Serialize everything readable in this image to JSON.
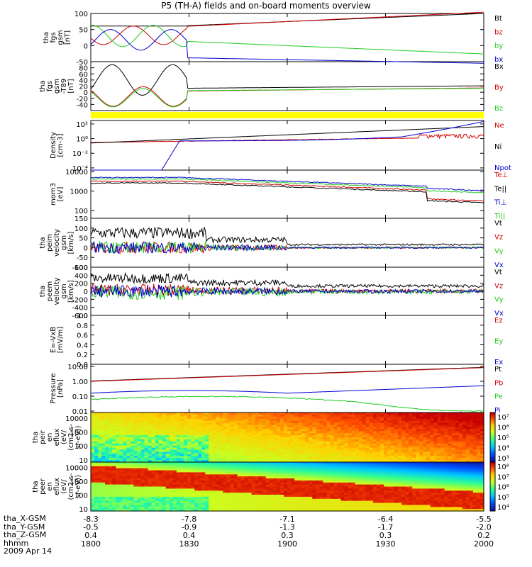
{
  "title": "P5 (TH-A) fields and on-board moments overview",
  "date_label": "2009 Apr 14",
  "colors": {
    "black": "#000000",
    "red": "#d40000",
    "green": "#1fcc1f",
    "blue": "#0000d0",
    "yellow": "#ffff00"
  },
  "chart_data": [
    {
      "id": "fgs_gsm",
      "type": "line",
      "ylabel": [
        "tha",
        "fgs",
        "gsm",
        "[nT]"
      ],
      "ylim": [
        -50,
        100
      ],
      "yticks": [
        100,
        50,
        0,
        -50
      ],
      "yticklabels": [
        "100",
        "50",
        "0",
        "-50"
      ],
      "series": [
        {
          "name": "Bt",
          "color": "black"
        },
        {
          "name": "bz",
          "color": "red"
        },
        {
          "name": "by",
          "color": "green"
        },
        {
          "name": "bx",
          "color": "blue"
        }
      ]
    },
    {
      "id": "fgs_gsm_t89",
      "type": "line",
      "ylabel": [
        "tha",
        "fgs",
        "gsm",
        "-T89",
        "[nT]"
      ],
      "ylim": [
        -60,
        100
      ],
      "yticks": [
        80,
        60,
        40,
        20,
        0,
        -20,
        -40
      ],
      "yticklabels": [
        "80",
        "60",
        "40",
        "20",
        "0",
        "-20",
        "-40"
      ],
      "series": [
        {
          "name": "Bx",
          "color": "black"
        },
        {
          "name": "By",
          "color": "red"
        },
        {
          "name": "Bz",
          "color": "green"
        }
      ]
    },
    {
      "id": "density",
      "type": "line",
      "ylabel": [
        "Density",
        "[cm-3]"
      ],
      "scale": "log",
      "ylim": [
        5e-05,
        300
      ],
      "yticks": [
        100,
        1,
        0.01,
        0.0001
      ],
      "yticklabels": [
        "10²",
        "10⁰",
        "10⁻²",
        "10⁻⁴"
      ],
      "series": [
        {
          "name": "Ne",
          "color": "red"
        },
        {
          "name": "Ni",
          "color": "black"
        },
        {
          "name": "Npot",
          "color": "blue"
        }
      ]
    },
    {
      "id": "temperature",
      "type": "line",
      "ylabel": [
        "mom3",
        "[eV]"
      ],
      "scale": "log",
      "ylim": [
        40,
        12000
      ],
      "yticks": [
        10000,
        1000,
        100
      ],
      "yticklabels": [
        "10000",
        "1000",
        "100"
      ],
      "series": [
        {
          "name": "Te⊥",
          "color": "red"
        },
        {
          "name": "Te||",
          "color": "black"
        },
        {
          "name": "Ti⊥",
          "color": "blue"
        },
        {
          "name": "Ti||",
          "color": "green"
        }
      ]
    },
    {
      "id": "peim_velocity",
      "type": "line",
      "ylabel": [
        "tha",
        "peim",
        "velocity",
        "gsm",
        "[km/s]"
      ],
      "ylim": [
        -100,
        150
      ],
      "yticks": [
        150,
        100,
        50,
        0,
        -50,
        -100
      ],
      "yticklabels": [
        "150",
        "100",
        "50",
        "0",
        "-50",
        "-100"
      ],
      "series": [
        {
          "name": "Vt",
          "color": "black"
        },
        {
          "name": "Vz",
          "color": "red"
        },
        {
          "name": "Vy",
          "color": "green"
        },
        {
          "name": "Vx",
          "color": "blue"
        }
      ]
    },
    {
      "id": "peem_velocity",
      "type": "line",
      "ylabel": [
        "tha",
        "peem",
        "velocity",
        "gsm",
        "[km/s]"
      ],
      "ylim": [
        -600,
        600
      ],
      "yticks": [
        600,
        400,
        200,
        0,
        -200,
        -400,
        -600
      ],
      "yticklabels": [
        "600",
        "400",
        "200",
        "0",
        "-200",
        "-400",
        "-600"
      ],
      "series": [
        {
          "name": "Vt",
          "color": "black"
        },
        {
          "name": "Vz",
          "color": "red"
        },
        {
          "name": "Vy",
          "color": "green"
        },
        {
          "name": "Vx",
          "color": "blue"
        }
      ]
    },
    {
      "id": "efield",
      "type": "line",
      "ylabel": [
        "E=-VxB",
        "[mV/m]"
      ],
      "ylim": [
        0,
        1
      ],
      "yticks": [
        1,
        0.8,
        0.6,
        0.4,
        0.2,
        0
      ],
      "yticklabels": [
        "1.0",
        "0.8",
        "0.6",
        "0.4",
        "0.2",
        "0.0"
      ],
      "series": [
        {
          "name": "Ez",
          "color": "red"
        },
        {
          "name": "Ey",
          "color": "green"
        },
        {
          "name": "Ex",
          "color": "blue"
        }
      ]
    },
    {
      "id": "pressure",
      "type": "line",
      "ylabel": [
        "Pressure",
        "[nPa]"
      ],
      "scale": "log",
      "ylim": [
        0.008,
        14
      ],
      "yticks": [
        10,
        1,
        0.1,
        0.01
      ],
      "yticklabels": [
        "10.00",
        "1.00",
        "0.10",
        "0.01"
      ],
      "series": [
        {
          "name": "Pt",
          "color": "black"
        },
        {
          "name": "Pb",
          "color": "red"
        },
        {
          "name": "Pe",
          "color": "green"
        },
        {
          "name": "Pi",
          "color": "blue"
        }
      ]
    },
    {
      "id": "ion_spectrogram",
      "type": "heatmap",
      "ylabel": [
        "tha",
        "peir",
        "en",
        "eflux",
        "(eV/",
        "(cm2-s-",
        "sr-eV))"
      ],
      "scale": "log",
      "ylim": [
        7,
        25000
      ],
      "yticks": [
        10000,
        1000,
        100,
        10
      ],
      "yticklabels": [
        "10000",
        "1000",
        "100",
        "10"
      ],
      "colorbar_labels": [
        "10⁷",
        "10⁶",
        "10⁵",
        "10⁴",
        "10³"
      ]
    },
    {
      "id": "electron_spectrogram",
      "type": "heatmap",
      "ylabel": [
        "tha",
        "peer",
        "en",
        "eflux",
        "(eV/",
        "(cm2-s-",
        "sr-eV))"
      ],
      "scale": "log",
      "ylim": [
        7,
        25000
      ],
      "yticks": [
        10000,
        1000,
        100,
        10
      ],
      "yticklabels": [
        "10000",
        "1000",
        "100",
        "10"
      ],
      "colorbar_labels": [
        "10⁸",
        "10⁷",
        "10⁶",
        "10⁵",
        "10⁴"
      ]
    }
  ],
  "x_axis": {
    "time": [
      "1800",
      "1830",
      "1900",
      "1930",
      "2000"
    ],
    "rows": [
      {
        "label": "tha_X-GSM",
        "values": [
          "-8.3",
          "-7.8",
          "-7.1",
          "-6.4",
          "-5.5"
        ]
      },
      {
        "label": "tha_Y-GSM",
        "values": [
          "-0.5",
          "-0.9",
          "-1.3",
          "-1.7",
          "-2.0"
        ]
      },
      {
        "label": "tha_Z-GSM",
        "values": [
          "0.4",
          "0.4",
          "0.3",
          "0.3",
          "0.2"
        ]
      },
      {
        "label": "hhmm",
        "values": [
          "1800",
          "1830",
          "1900",
          "1930",
          "2000"
        ]
      }
    ]
  }
}
